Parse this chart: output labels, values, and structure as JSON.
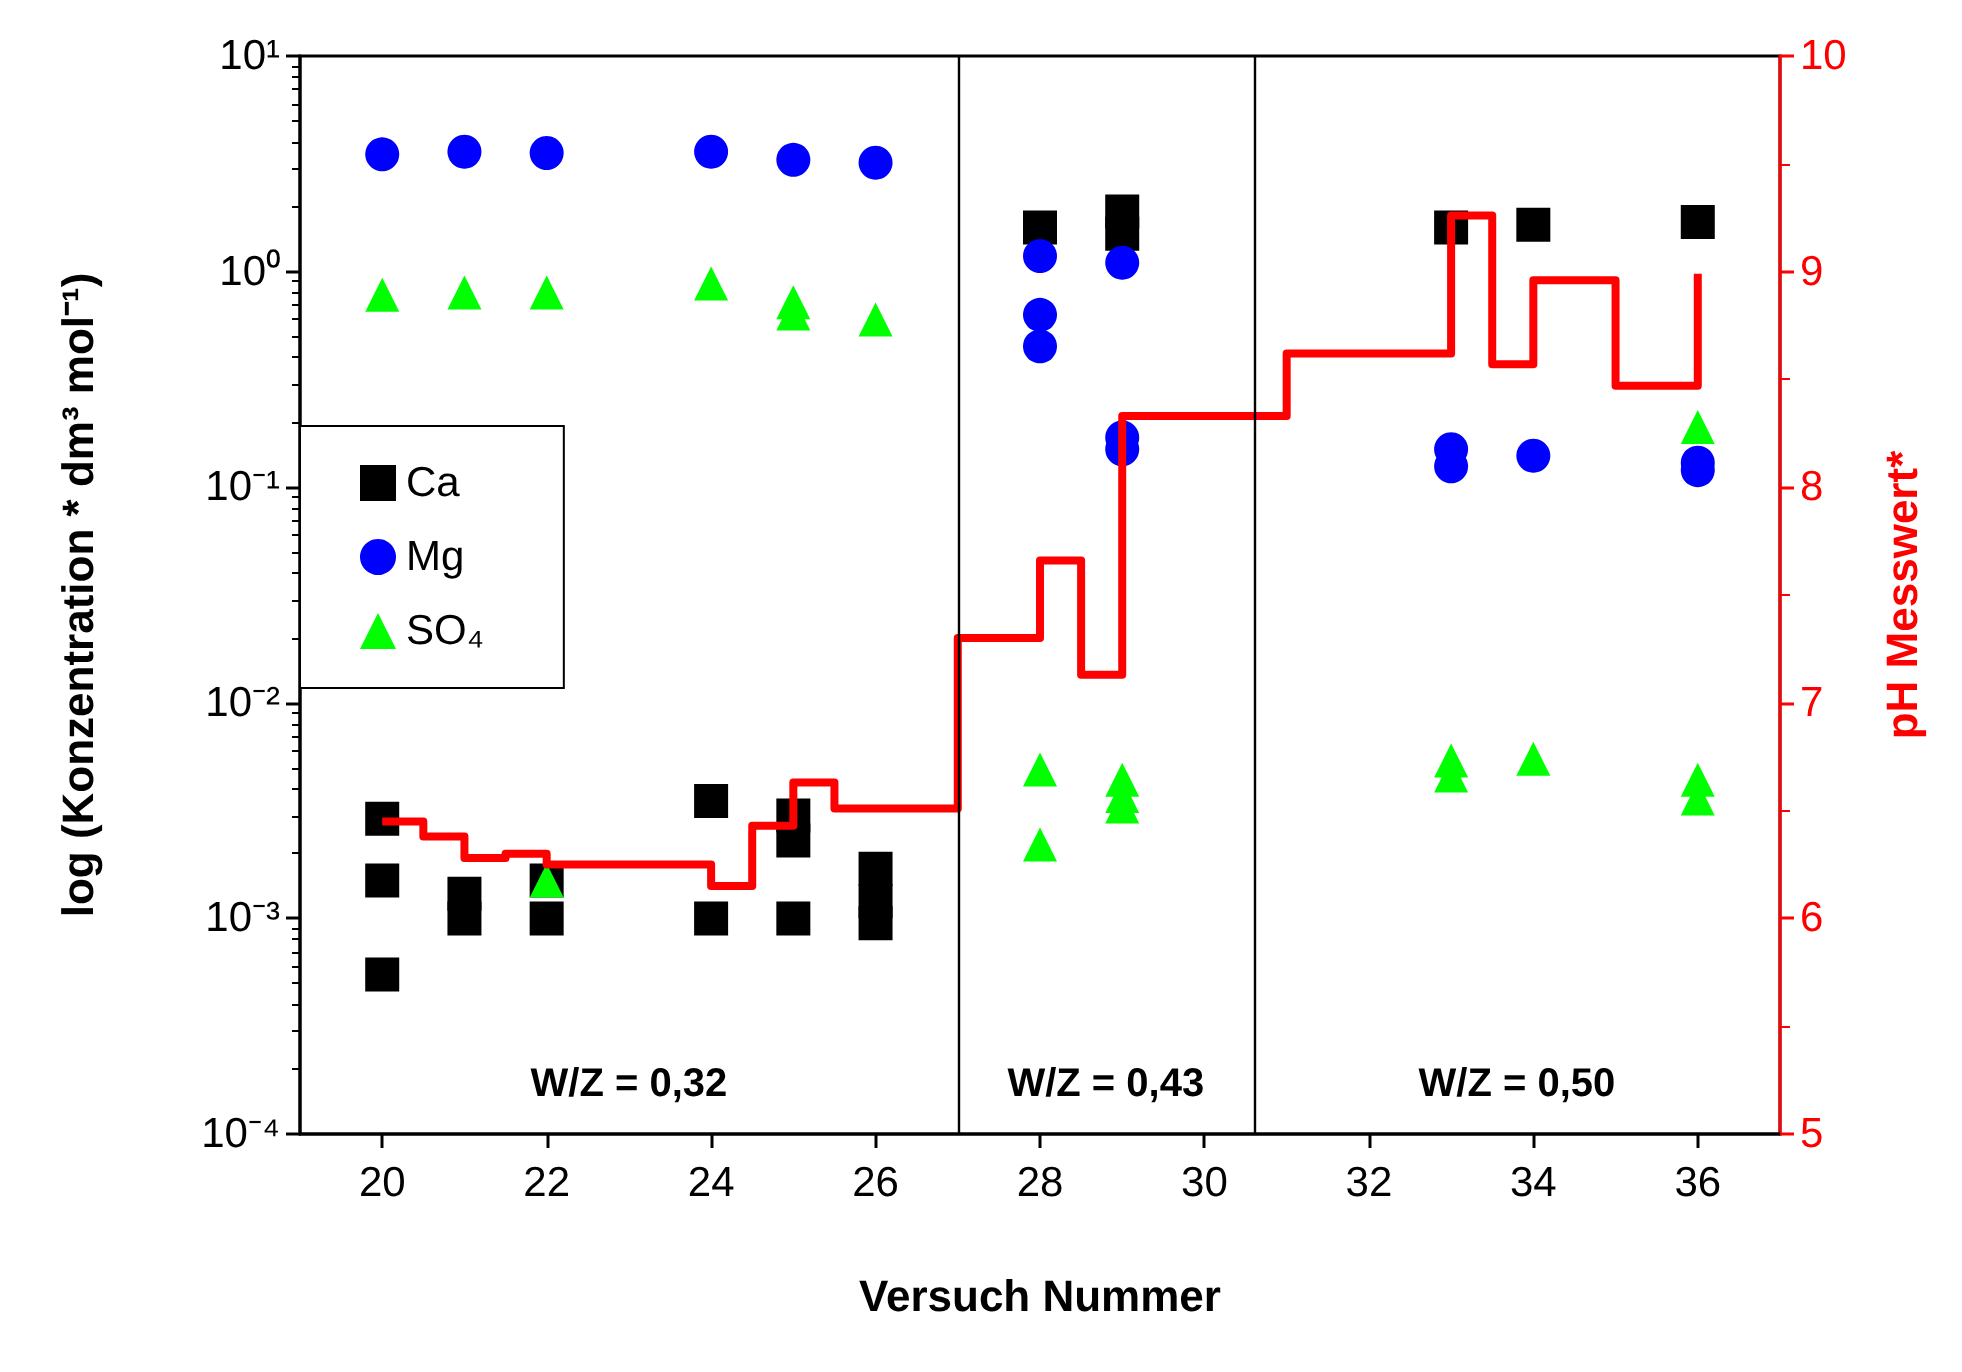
{
  "chart_data": {
    "type": "scatter",
    "xlabel": "Versuch Nummer",
    "ylabel": "log (Konzentration * dm³ mol⁻¹)",
    "y2label": "pH Messwert*",
    "log": "y",
    "grid": false,
    "legend": "left",
    "xlim": [
      19,
      37
    ],
    "xticks": [
      20,
      22,
      24,
      26,
      28,
      30,
      32,
      34,
      36
    ],
    "ylim": [
      0.0001,
      10
    ],
    "yticks": [
      {
        "value": 0.0001,
        "label": "10⁻⁴"
      },
      {
        "value": 0.001,
        "label": "10⁻³"
      },
      {
        "value": 0.01,
        "label": "10⁻²"
      },
      {
        "value": 0.1,
        "label": "10⁻¹"
      },
      {
        "value": 1,
        "label": "10⁰"
      },
      {
        "value": 10,
        "label": "10¹"
      }
    ],
    "y2lim": [
      5,
      10
    ],
    "y2ticks": [
      5,
      6,
      7,
      8,
      9,
      10
    ],
    "series": [
      {
        "name": "Ca",
        "color": "#000000",
        "marker": "square",
        "x": [
          20,
          20,
          20,
          21,
          21,
          22,
          22,
          24,
          24,
          25,
          25,
          25,
          26,
          26,
          26,
          28,
          29,
          29,
          33,
          34,
          36
        ],
        "values": [
          0.0029,
          0.0015,
          0.00055,
          0.0013,
          0.001,
          0.0015,
          0.001,
          0.0035,
          0.001,
          0.003,
          0.0023,
          0.001,
          0.0017,
          0.0012,
          0.00095,
          1.6,
          1.9,
          1.5,
          1.6,
          1.65,
          1.7
        ]
      },
      {
        "name": "Mg",
        "color": "#0000ff",
        "marker": "circle",
        "x": [
          20,
          21,
          22,
          24,
          25,
          26,
          28,
          28,
          28,
          29,
          29,
          29,
          33,
          33,
          34,
          36,
          36
        ],
        "values": [
          3.5,
          3.6,
          3.55,
          3.6,
          3.3,
          3.2,
          1.18,
          0.63,
          0.45,
          1.1,
          0.17,
          0.15,
          0.15,
          0.125,
          0.14,
          0.13,
          0.12
        ]
      },
      {
        "name": "SO₄",
        "color": "#00ff00",
        "marker": "triangle",
        "x": [
          20,
          21,
          22,
          22,
          24,
          25,
          25,
          26,
          28,
          28,
          29,
          29,
          29,
          33,
          33,
          34,
          36,
          36,
          36
        ],
        "values": [
          0.78,
          0.8,
          0.8,
          0.0015,
          0.88,
          0.72,
          0.64,
          0.6,
          0.0049,
          0.0022,
          0.0044,
          0.0037,
          0.0033,
          0.0054,
          0.0046,
          0.0055,
          0.19,
          0.0044,
          0.0036
        ]
      },
      {
        "type": "step",
        "axis": "y2",
        "color": "#ff0000",
        "marker": "none",
        "x": [
          20,
          20.5,
          21,
          21.5,
          22,
          24,
          24.5,
          25,
          25.5,
          27,
          28,
          28.5,
          29,
          31,
          33,
          33.5,
          34,
          35,
          36
        ],
        "values": [
          6.45,
          6.38,
          6.28,
          6.3,
          6.25,
          6.15,
          6.43,
          6.63,
          6.51,
          7.3,
          7.66,
          7.13,
          8.33,
          8.62,
          9.26,
          8.57,
          8.96,
          8.47,
          8.99
        ]
      }
    ],
    "ref_lines": [
      {
        "axis": "x",
        "value": 27,
        "color": "#000000"
      },
      {
        "axis": "x",
        "value": 30.6,
        "color": "#000000"
      }
    ],
    "annotations": [
      "W/Z = 0,32",
      "W/Z = 0,43",
      "W/Z = 0,50"
    ]
  }
}
